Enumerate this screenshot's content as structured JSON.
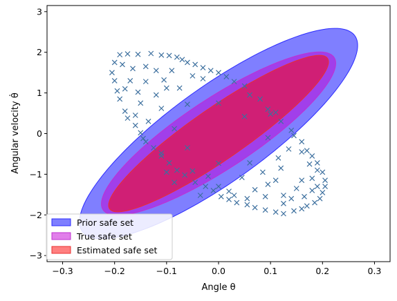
{
  "chart_data": {
    "type": "area",
    "xlabel": "Angle θ",
    "ylabel": "Angular velocity θ̇",
    "xlim": [
      -0.33,
      0.33
    ],
    "ylim": [
      -3.15,
      3.15
    ],
    "xticks": [
      -0.3,
      -0.2,
      -0.1,
      0.0,
      0.1,
      0.2,
      0.3
    ],
    "xtick_labels": [
      "−0.3",
      "−0.2",
      "−0.1",
      "0.0",
      "0.1",
      "0.2",
      "0.3"
    ],
    "yticks": [
      -3,
      -2,
      -1,
      0,
      1,
      2,
      3
    ],
    "ytick_labels": [
      "−3",
      "−2",
      "−1",
      "0",
      "1",
      "2",
      "3"
    ],
    "grid": false,
    "legend_position": "lower-left",
    "regions": [
      {
        "name": "Prior safe set",
        "color": "#0000ff",
        "alpha": 0.5,
        "edge": "#2b2bff",
        "ellipse": {
          "cx": 0.0,
          "cy": 0.0,
          "semi_major": [
            0.2375,
            2.575
          ],
          "semi_minor": [
            0.1233,
            -0.255
          ],
          "points": 180
        }
      },
      {
        "name": "True safe set",
        "color": "#c400d6",
        "alpha": 0.5,
        "edge": "#c030d0",
        "ellipse": {
          "cx": 0.0,
          "cy": 0.0,
          "semi_major": [
            0.2035,
            2.0
          ],
          "semi_minor": [
            0.097,
            -0.178
          ],
          "points": 180
        }
      },
      {
        "name": "Estimated safe set",
        "color": "#ff0000",
        "alpha": 0.5,
        "edge": "#e83030",
        "ellipse": {
          "cx": 0.0,
          "cy": 0.0,
          "semi_major": [
            0.1995,
            1.92
          ],
          "semi_minor": [
            0.0705,
            -0.14
          ],
          "points": 180
        }
      }
    ],
    "samples": {
      "marker": "x",
      "color": "#3c6f9e",
      "points": [
        [
          -0.19,
          1.94
        ],
        [
          -0.175,
          1.96
        ],
        [
          -0.155,
          1.95
        ],
        [
          -0.13,
          1.97
        ],
        [
          -0.11,
          1.93
        ],
        [
          -0.095,
          1.92
        ],
        [
          -0.08,
          1.88
        ],
        [
          -0.07,
          1.82
        ],
        [
          -0.06,
          1.75
        ],
        [
          -0.045,
          1.7
        ],
        [
          -0.03,
          1.62
        ],
        [
          -0.015,
          1.55
        ],
        [
          0.0,
          1.5
        ],
        [
          0.015,
          1.4
        ],
        [
          0.03,
          1.28
        ],
        [
          0.05,
          1.17
        ],
        [
          0.06,
          0.95
        ],
        [
          0.08,
          0.85
        ],
        [
          0.095,
          0.6
        ],
        [
          0.11,
          0.52
        ],
        [
          0.12,
          0.3
        ],
        [
          0.14,
          0.08
        ],
        [
          0.145,
          -0.05
        ],
        [
          0.16,
          -0.2
        ],
        [
          0.17,
          -0.42
        ],
        [
          0.18,
          -0.55
        ],
        [
          0.19,
          -0.72
        ],
        [
          0.2,
          -0.95
        ],
        [
          0.205,
          -1.15
        ],
        [
          0.205,
          -1.3
        ],
        [
          -0.2,
          1.75
        ],
        [
          -0.205,
          1.5
        ],
        [
          -0.2,
          1.3
        ],
        [
          -0.195,
          1.05
        ],
        [
          -0.19,
          0.85
        ],
        [
          -0.18,
          0.55
        ],
        [
          -0.175,
          0.38
        ],
        [
          -0.16,
          0.2
        ],
        [
          -0.15,
          0.02
        ],
        [
          -0.14,
          -0.2
        ],
        [
          -0.125,
          -0.35
        ],
        [
          -0.11,
          -0.55
        ],
        [
          -0.095,
          -0.72
        ],
        [
          -0.08,
          -0.9
        ],
        [
          -0.065,
          -1.02
        ],
        [
          -0.045,
          -1.2
        ],
        [
          -0.025,
          -1.3
        ],
        [
          -0.01,
          -1.4
        ],
        [
          0.005,
          -1.55
        ],
        [
          0.02,
          -1.62
        ],
        [
          0.035,
          -1.7
        ],
        [
          0.055,
          -1.75
        ],
        [
          0.07,
          -1.82
        ],
        [
          0.09,
          -1.88
        ],
        [
          0.11,
          -1.93
        ],
        [
          0.125,
          -1.97
        ],
        [
          0.145,
          -1.9
        ],
        [
          0.16,
          -1.85
        ],
        [
          0.17,
          -1.78
        ],
        [
          0.185,
          -1.7
        ],
        [
          0.195,
          -1.6
        ],
        [
          0.2,
          -1.45
        ],
        [
          -0.185,
          1.7
        ],
        [
          -0.165,
          1.6
        ],
        [
          -0.14,
          1.65
        ],
        [
          -0.12,
          1.55
        ],
        [
          -0.09,
          1.55
        ],
        [
          -0.105,
          1.32
        ],
        [
          -0.14,
          1.28
        ],
        [
          -0.17,
          1.3
        ],
        [
          -0.18,
          1.1
        ],
        [
          -0.155,
          1.02
        ],
        [
          -0.12,
          0.95
        ],
        [
          -0.1,
          1.12
        ],
        [
          -0.075,
          1.12
        ],
        [
          -0.05,
          1.42
        ],
        [
          -0.03,
          1.35
        ],
        [
          -0.06,
          0.72
        ],
        [
          -0.11,
          0.62
        ],
        [
          -0.135,
          0.3
        ],
        [
          -0.16,
          0.45
        ],
        [
          -0.085,
          0.12
        ],
        [
          -0.15,
          0.75
        ],
        [
          -0.145,
          -0.12
        ],
        [
          -0.11,
          -0.48
        ],
        [
          -0.06,
          -0.35
        ],
        [
          0.0,
          0.75
        ],
        [
          0.05,
          0.42
        ],
        [
          0.1,
          0.48
        ],
        [
          0.095,
          -0.1
        ],
        [
          0.06,
          -0.72
        ],
        [
          0.0,
          -0.73
        ],
        [
          -0.05,
          -0.92
        ],
        [
          -0.085,
          -1.2
        ],
        [
          -0.1,
          -0.95
        ],
        [
          -0.02,
          -1.05
        ],
        [
          0.02,
          -1.42
        ],
        [
          0.045,
          -1.08
        ],
        [
          0.085,
          -0.95
        ],
        [
          0.095,
          -1.25
        ],
        [
          0.07,
          -1.38
        ],
        [
          0.09,
          -1.55
        ],
        [
          0.125,
          -1.52
        ],
        [
          0.11,
          -1.15
        ],
        [
          0.12,
          -0.85
        ],
        [
          0.115,
          -0.6
        ],
        [
          0.135,
          -0.38
        ],
        [
          0.16,
          -0.45
        ],
        [
          0.175,
          -0.75
        ],
        [
          0.19,
          -0.9
        ],
        [
          0.18,
          -1.1
        ],
        [
          0.16,
          -1.15
        ],
        [
          0.15,
          -1.35
        ],
        [
          0.14,
          -1.6
        ],
        [
          0.165,
          -1.55
        ],
        [
          0.18,
          -1.4
        ],
        [
          0.19,
          -1.3
        ],
        [
          0.125,
          -1.72
        ],
        [
          0.055,
          -1.6
        ],
        [
          0.03,
          -1.52
        ],
        [
          0.0,
          -1.3
        ],
        [
          -0.035,
          -1.52
        ]
      ]
    }
  }
}
